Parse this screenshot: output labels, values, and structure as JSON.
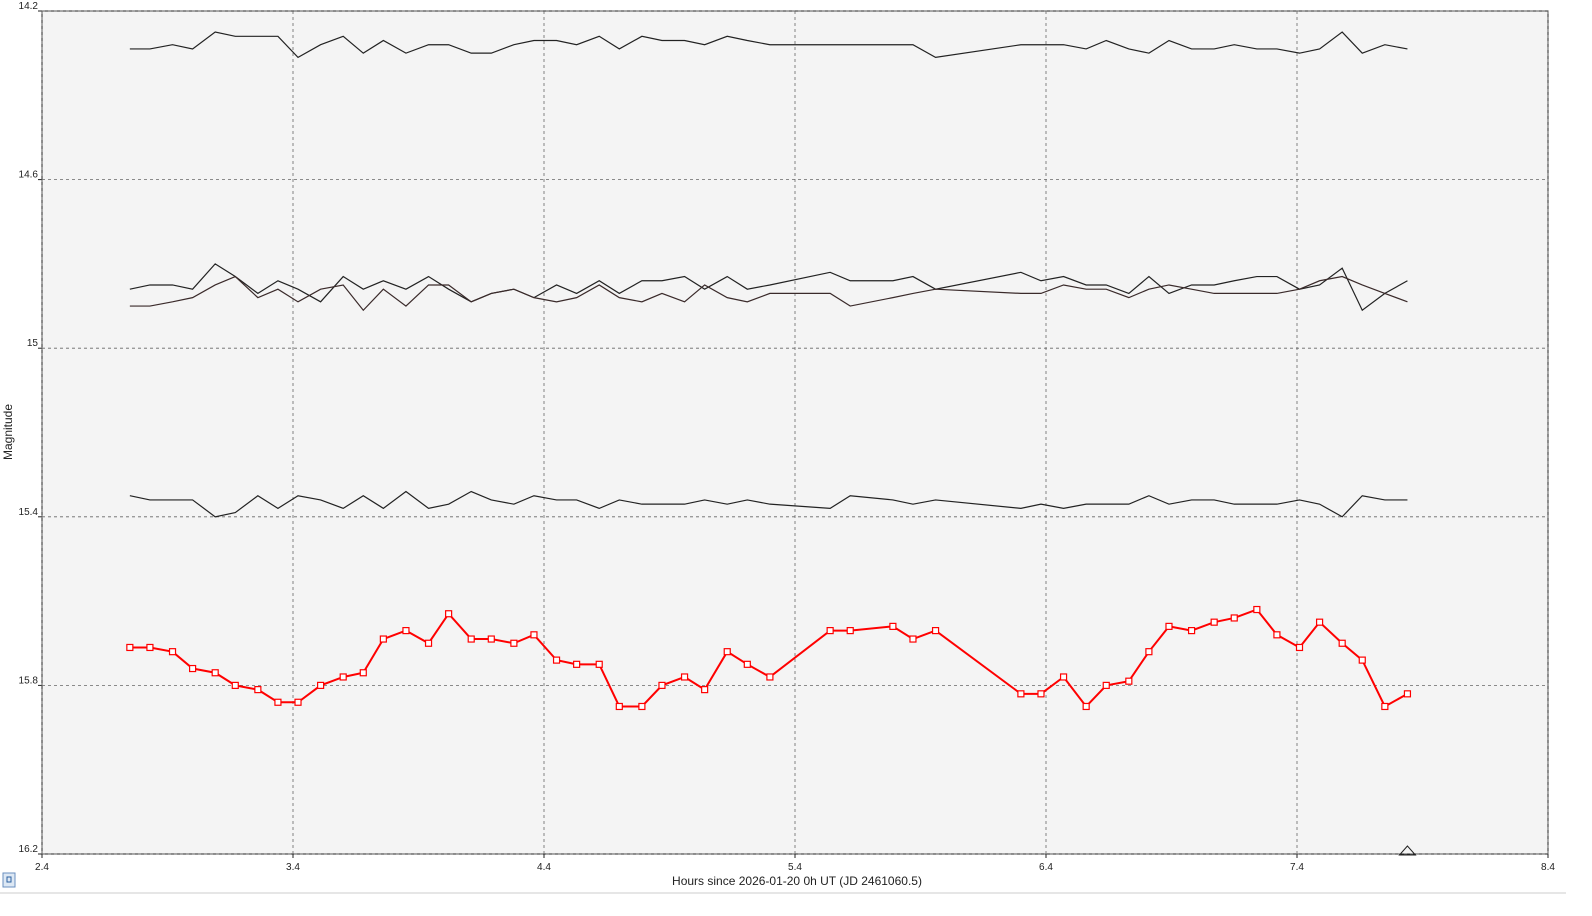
{
  "chart_data": {
    "type": "line",
    "xlabel": "Hours since 2026-01-20 0h UT (JD 2461060.5)",
    "ylabel": "Magnitude",
    "x": [
      2.75,
      2.83,
      2.92,
      3.0,
      3.09,
      3.17,
      3.26,
      3.34,
      3.42,
      3.51,
      3.6,
      3.68,
      3.76,
      3.85,
      3.94,
      4.02,
      4.11,
      4.19,
      4.28,
      4.36,
      4.45,
      4.53,
      4.62,
      4.7,
      4.79,
      4.87,
      4.96,
      5.04,
      5.13,
      5.21,
      5.3,
      5.54,
      5.62,
      5.79,
      5.87,
      5.96,
      6.3,
      6.38,
      6.47,
      6.56,
      6.64,
      6.73,
      6.81,
      6.89,
      6.98,
      7.07,
      7.15,
      7.24,
      7.32,
      7.41,
      7.49,
      7.58,
      7.66,
      7.75,
      7.84
    ],
    "series": [
      {
        "color": "#222222",
        "values": [
          14.29,
          14.29,
          14.28,
          14.29,
          14.25,
          14.26,
          14.26,
          14.26,
          14.31,
          14.28,
          14.26,
          14.3,
          14.27,
          14.3,
          14.28,
          14.28,
          14.3,
          14.3,
          14.28,
          14.27,
          14.27,
          14.28,
          14.26,
          14.29,
          14.26,
          14.27,
          14.27,
          14.28,
          14.26,
          14.27,
          14.28,
          14.28,
          14.28,
          14.28,
          14.28,
          14.31,
          14.28,
          14.28,
          14.28,
          14.29,
          14.27,
          14.29,
          14.3,
          14.27,
          14.29,
          14.29,
          14.28,
          14.29,
          14.29,
          14.3,
          14.29,
          14.25,
          14.3,
          14.28,
          14.29
        ]
      },
      {
        "color": "#222222",
        "values": [
          14.86,
          14.85,
          14.85,
          14.86,
          14.8,
          14.83,
          14.87,
          14.84,
          14.86,
          14.89,
          14.83,
          14.86,
          14.84,
          14.86,
          14.83,
          14.86,
          14.89,
          14.87,
          14.86,
          14.88,
          14.85,
          14.87,
          14.84,
          14.87,
          14.84,
          14.84,
          14.83,
          14.86,
          14.83,
          14.86,
          14.85,
          14.82,
          14.84,
          14.84,
          14.83,
          14.86,
          14.82,
          14.84,
          14.83,
          14.85,
          14.85,
          14.87,
          14.83,
          14.87,
          14.85,
          14.85,
          14.84,
          14.83,
          14.83,
          14.86,
          14.85,
          14.81,
          14.91,
          14.87,
          14.84
        ]
      },
      {
        "color": "#3a2a2a",
        "values": [
          14.9,
          14.9,
          14.89,
          14.88,
          14.85,
          14.83,
          14.88,
          14.86,
          14.89,
          14.86,
          14.85,
          14.91,
          14.86,
          14.9,
          14.85,
          14.85,
          14.89,
          14.87,
          14.86,
          14.88,
          14.89,
          14.88,
          14.85,
          14.88,
          14.89,
          14.87,
          14.89,
          14.85,
          14.88,
          14.89,
          14.87,
          14.87,
          14.9,
          14.88,
          14.87,
          14.86,
          14.87,
          14.87,
          14.85,
          14.86,
          14.86,
          14.88,
          14.86,
          14.85,
          14.86,
          14.87,
          14.87,
          14.87,
          14.87,
          14.86,
          14.84,
          14.83,
          14.85,
          14.87,
          14.89
        ]
      },
      {
        "color": "#222222",
        "values": [
          15.35,
          15.36,
          15.36,
          15.36,
          15.4,
          15.39,
          15.35,
          15.38,
          15.35,
          15.36,
          15.38,
          15.35,
          15.38,
          15.34,
          15.38,
          15.37,
          15.34,
          15.36,
          15.37,
          15.35,
          15.36,
          15.36,
          15.38,
          15.36,
          15.37,
          15.37,
          15.37,
          15.36,
          15.37,
          15.36,
          15.37,
          15.38,
          15.35,
          15.36,
          15.37,
          15.36,
          15.38,
          15.37,
          15.38,
          15.37,
          15.37,
          15.37,
          15.35,
          15.37,
          15.36,
          15.36,
          15.37,
          15.37,
          15.37,
          15.36,
          15.37,
          15.4,
          15.35,
          15.36,
          15.36
        ]
      },
      {
        "color": "#ff0000",
        "marker": "square",
        "values": [
          15.71,
          15.71,
          15.72,
          15.76,
          15.77,
          15.8,
          15.81,
          15.84,
          15.84,
          15.8,
          15.78,
          15.77,
          15.69,
          15.67,
          15.7,
          15.63,
          15.69,
          15.69,
          15.7,
          15.68,
          15.74,
          15.75,
          15.75,
          15.85,
          15.85,
          15.8,
          15.78,
          15.81,
          15.72,
          15.75,
          15.78,
          15.67,
          15.67,
          15.66,
          15.69,
          15.67,
          15.82,
          15.82,
          15.78,
          15.85,
          15.8,
          15.79,
          15.72,
          15.66,
          15.67,
          15.65,
          15.64,
          15.62,
          15.68,
          15.71,
          15.65,
          15.7,
          15.74,
          15.85,
          15.82
        ]
      }
    ],
    "xlim": [
      2.4,
      8.4
    ],
    "xticks": [
      2.4,
      3.4,
      4.4,
      5.4,
      6.4,
      7.4,
      8.4
    ],
    "ylim": [
      14.2,
      16.2
    ],
    "yticks": [
      14.2,
      14.6,
      15,
      15.4,
      15.8,
      16.2
    ],
    "invert_y": true,
    "grid": true
  }
}
